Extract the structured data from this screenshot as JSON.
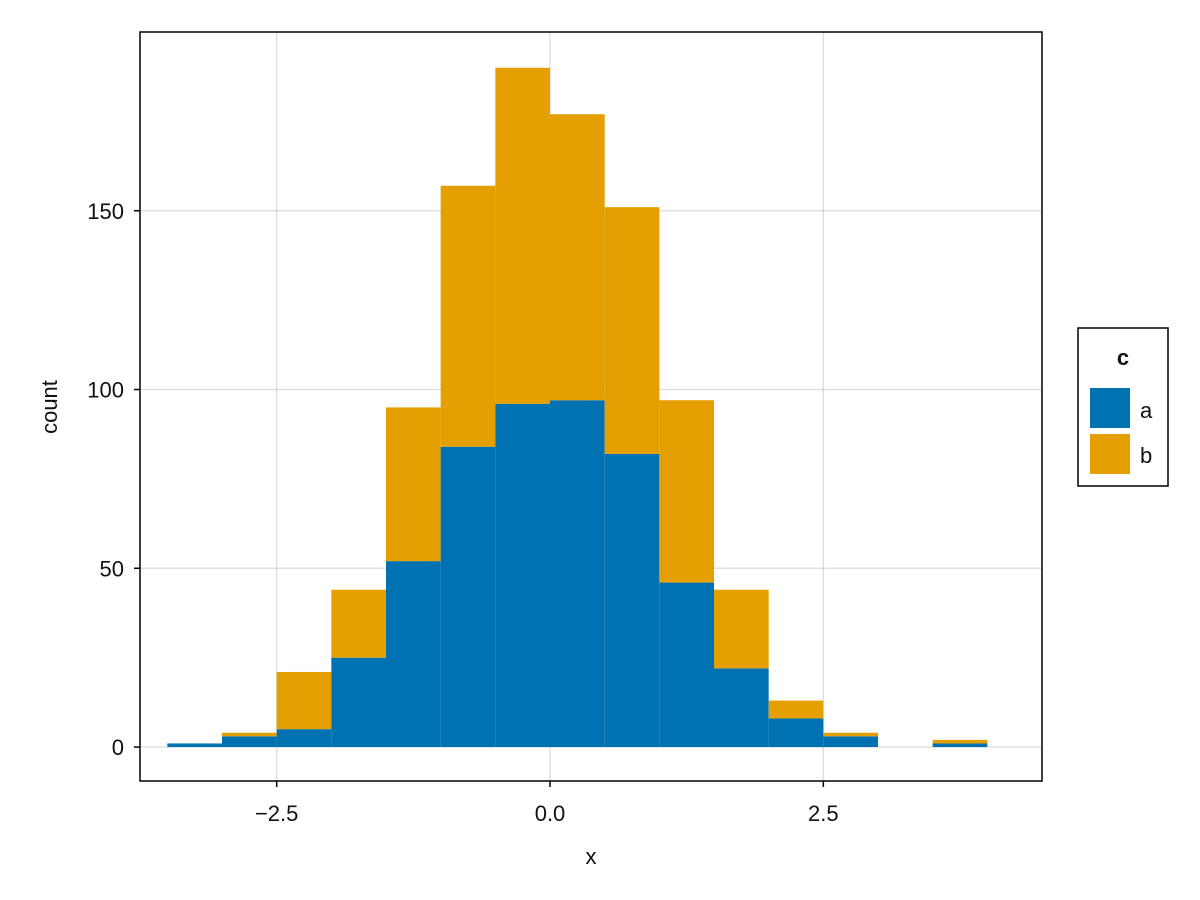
{
  "chart_data": {
    "type": "bar",
    "stacked": true,
    "xlabel": "x",
    "ylabel": "count",
    "xlim": [
      -3.75,
      4.5
    ],
    "ylim": [
      -9.5,
      200
    ],
    "xticks": [
      -2.5,
      0.0,
      2.5
    ],
    "xtick_labels": [
      "−2.5",
      "0.0",
      "2.5"
    ],
    "yticks": [
      0,
      50,
      100,
      150
    ],
    "ytick_labels": [
      "0",
      "50",
      "100",
      "150"
    ],
    "grid": true,
    "bin_edges": [
      -3.5,
      -3.0,
      -2.5,
      -2.0,
      -1.5,
      -1.0,
      -0.5,
      0.0,
      0.5,
      1.0,
      1.5,
      2.0,
      2.5,
      3.0,
      3.5,
      4.0
    ],
    "series": [
      {
        "name": "a",
        "color": "#0072b2",
        "values": [
          1,
          3,
          5,
          25,
          52,
          84,
          96,
          97,
          82,
          46,
          22,
          8,
          3,
          0,
          1
        ]
      },
      {
        "name": "b",
        "color": "#e69f00",
        "values": [
          0,
          1,
          16,
          19,
          43,
          73,
          94,
          80,
          69,
          51,
          22,
          5,
          1,
          0,
          1
        ]
      }
    ],
    "legend": {
      "title": "c",
      "placement": "right"
    }
  }
}
